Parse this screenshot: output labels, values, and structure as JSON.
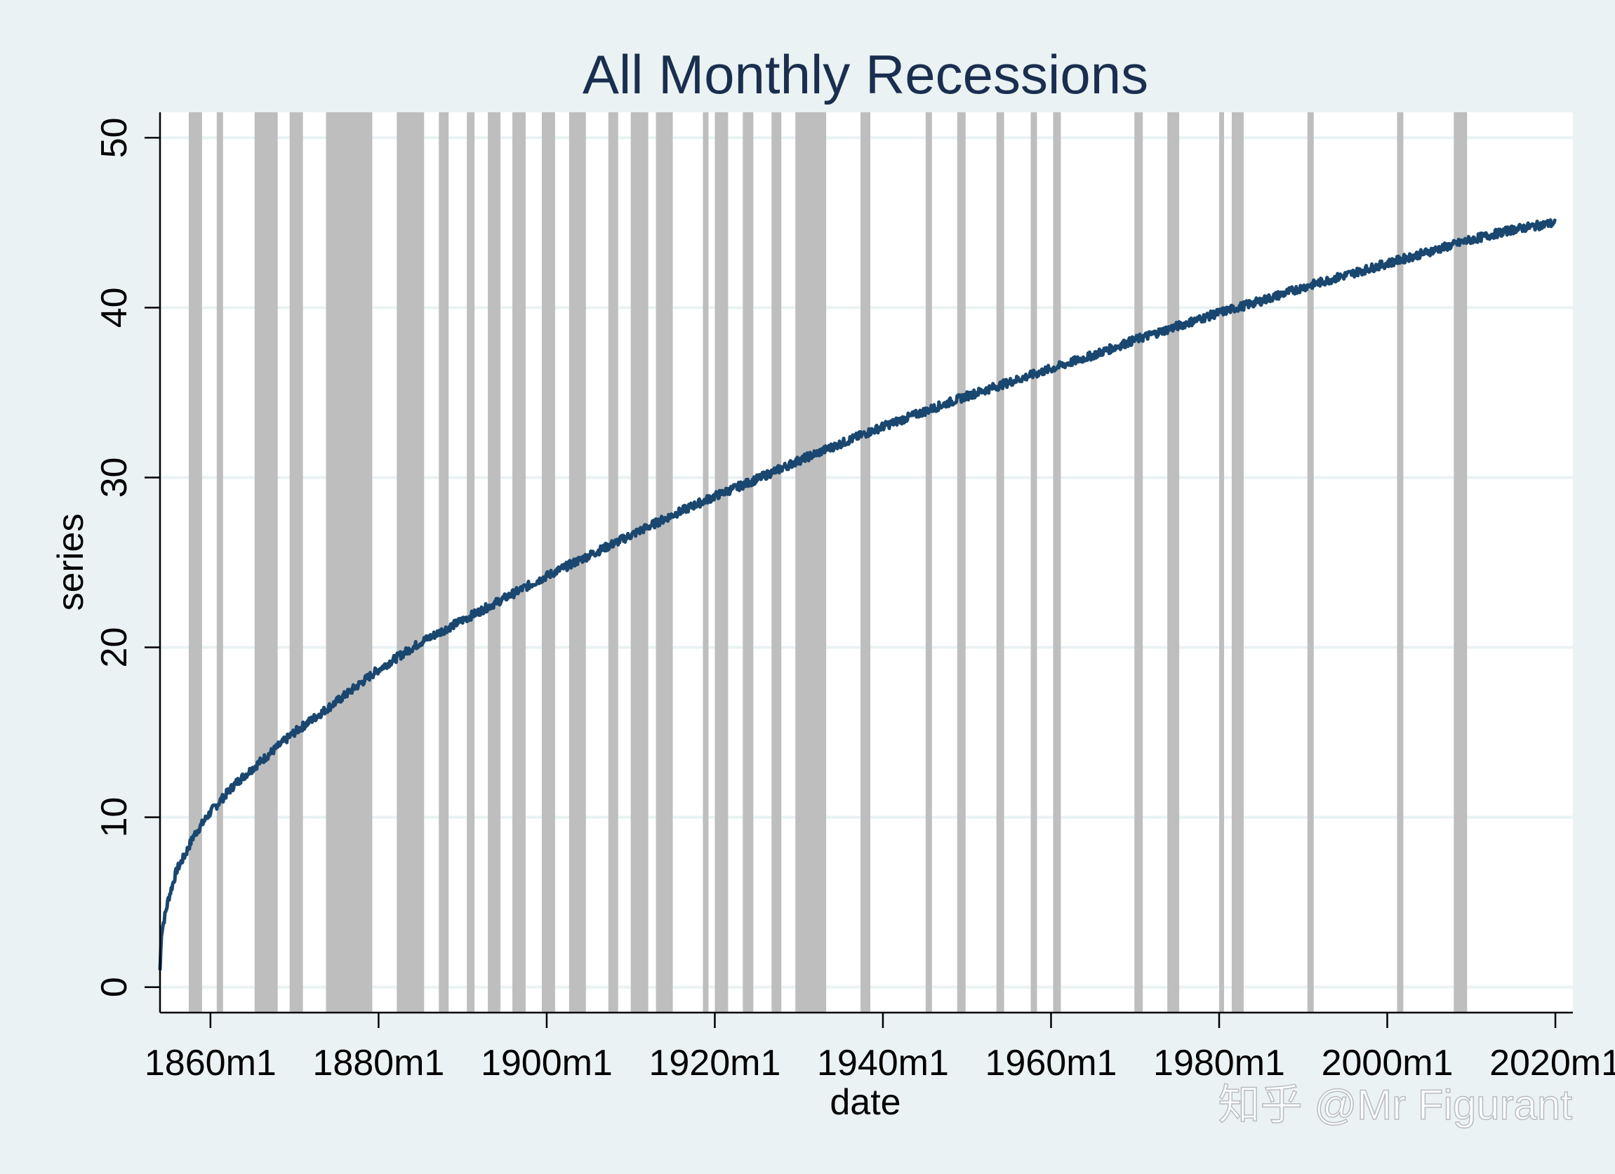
{
  "watermark": "知乎 @Mr Figurant",
  "chart_data": {
    "type": "line",
    "title": "All Monthly Recessions",
    "xlabel": "date",
    "ylabel": "series",
    "xlim": [
      "1854m1",
      "2022m2"
    ],
    "ylim": [
      -1.5,
      51.5
    ],
    "x_ticks": [
      "1860m1",
      "1880m1",
      "1900m1",
      "1920m1",
      "1940m1",
      "1960m1",
      "1980m1",
      "2000m1",
      "2020m1"
    ],
    "y_ticks": [
      0,
      10,
      20,
      30,
      40,
      50
    ],
    "grid": true,
    "colors": {
      "line": "#1a476f",
      "recession": "#bebebe",
      "plot_bg": "#ffffff",
      "outer_bg": "#eaf2f3",
      "grid": "#eaf2f3"
    },
    "recessions": [
      [
        "1857m6",
        "1858m12"
      ],
      [
        "1860m10",
        "1861m6"
      ],
      [
        "1865m4",
        "1867m12"
      ],
      [
        "1869m6",
        "1870m12"
      ],
      [
        "1873m10",
        "1879m3"
      ],
      [
        "1882m3",
        "1885m5"
      ],
      [
        "1887m3",
        "1888m4"
      ],
      [
        "1890m7",
        "1891m5"
      ],
      [
        "1893m1",
        "1894m6"
      ],
      [
        "1895m12",
        "1897m6"
      ],
      [
        "1899m6",
        "1900m12"
      ],
      [
        "1902m9",
        "1904m8"
      ],
      [
        "1907m5",
        "1908m6"
      ],
      [
        "1910m1",
        "1912m1"
      ],
      [
        "1913m1",
        "1914m12"
      ],
      [
        "1918m8",
        "1919m3"
      ],
      [
        "1920m1",
        "1921m7"
      ],
      [
        "1923m5",
        "1924m7"
      ],
      [
        "1926m10",
        "1927m11"
      ],
      [
        "1929m8",
        "1933m3"
      ],
      [
        "1937m5",
        "1938m6"
      ],
      [
        "1945m2",
        "1945m10"
      ],
      [
        "1948m11",
        "1949m10"
      ],
      [
        "1953m7",
        "1954m5"
      ],
      [
        "1957m8",
        "1958m4"
      ],
      [
        "1960m4",
        "1961m2"
      ],
      [
        "1969m12",
        "1970m11"
      ],
      [
        "1973m11",
        "1975m3"
      ],
      [
        "1980m1",
        "1980m7"
      ],
      [
        "1981m7",
        "1982m11"
      ],
      [
        "1990m7",
        "1991m3"
      ],
      [
        "2001m3",
        "2001m11"
      ],
      [
        "2007m12",
        "2009m6"
      ]
    ],
    "series": [
      {
        "start": "1854m1",
        "end": "2020m1",
        "points": [
          [
            "1854m1",
            1.0
          ],
          [
            "1854m3",
            3.2
          ],
          [
            "1855m1",
            5.2
          ],
          [
            "1856m1",
            6.9
          ],
          [
            "1857m1",
            7.8
          ],
          [
            "1858m1",
            8.9
          ],
          [
            "1860m1",
            10.3
          ],
          [
            "1863m1",
            12.0
          ],
          [
            "1866m1",
            13.3
          ],
          [
            "1870m1",
            15.0
          ],
          [
            "1875m1",
            16.8
          ],
          [
            "1880m1",
            18.7
          ],
          [
            "1885m1",
            20.3
          ],
          [
            "1890m1",
            21.6
          ],
          [
            "1895m1",
            22.9
          ],
          [
            "1900m1",
            24.2
          ],
          [
            "1905m1",
            25.4
          ],
          [
            "1910m1",
            26.6
          ],
          [
            "1915m1",
            27.8
          ],
          [
            "1920m1",
            28.9
          ],
          [
            "1925m1",
            29.9
          ],
          [
            "1930m1",
            31.0
          ],
          [
            "1935m1",
            32.0
          ],
          [
            "1940m1",
            33.0
          ],
          [
            "1945m1",
            33.9
          ],
          [
            "1950m1",
            34.8
          ],
          [
            "1955m1",
            35.6
          ],
          [
            "1960m1",
            36.4
          ],
          [
            "1965m1",
            37.2
          ],
          [
            "1970m1",
            38.1
          ],
          [
            "1975m1",
            38.9
          ],
          [
            "1980m1",
            39.7
          ],
          [
            "1985m1",
            40.4
          ],
          [
            "1990m1",
            41.2
          ],
          [
            "1995m1",
            41.9
          ],
          [
            "2000m1",
            42.6
          ],
          [
            "2005m1",
            43.3
          ],
          [
            "2010m1",
            44.0
          ],
          [
            "2015m1",
            44.6
          ],
          [
            "2020m1",
            45.0
          ]
        ]
      }
    ]
  }
}
